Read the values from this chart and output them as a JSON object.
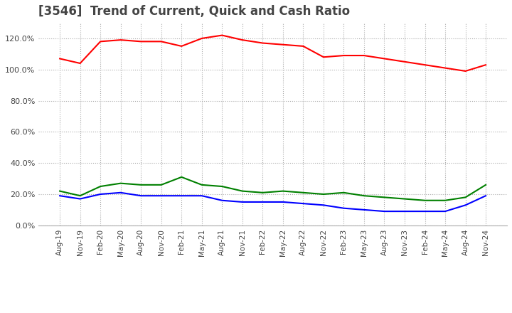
{
  "title": "[3546]  Trend of Current, Quick and Cash Ratio",
  "title_fontsize": 12,
  "background_color": "#ffffff",
  "grid_color": "#aaaaaa",
  "x_labels": [
    "Aug-19",
    "Nov-19",
    "Feb-20",
    "May-20",
    "Aug-20",
    "Nov-20",
    "Feb-21",
    "May-21",
    "Aug-21",
    "Nov-21",
    "Feb-22",
    "May-22",
    "Aug-22",
    "Nov-22",
    "Feb-23",
    "May-23",
    "Aug-23",
    "Nov-23",
    "Feb-24",
    "May-24",
    "Aug-24",
    "Nov-24"
  ],
  "current_ratio": [
    1.07,
    1.04,
    1.18,
    1.19,
    1.18,
    1.18,
    1.15,
    1.2,
    1.22,
    1.19,
    1.17,
    1.16,
    1.15,
    1.08,
    1.09,
    1.09,
    1.07,
    1.05,
    1.03,
    1.01,
    0.99,
    1.03
  ],
  "quick_ratio": [
    0.22,
    0.19,
    0.25,
    0.27,
    0.26,
    0.26,
    0.31,
    0.26,
    0.25,
    0.22,
    0.21,
    0.22,
    0.21,
    0.2,
    0.21,
    0.19,
    0.18,
    0.17,
    0.16,
    0.16,
    0.18,
    0.26
  ],
  "cash_ratio": [
    0.19,
    0.17,
    0.2,
    0.21,
    0.19,
    0.19,
    0.19,
    0.19,
    0.16,
    0.15,
    0.15,
    0.15,
    0.14,
    0.13,
    0.11,
    0.1,
    0.09,
    0.09,
    0.09,
    0.09,
    0.13,
    0.19
  ],
  "yticks": [
    0.0,
    0.2,
    0.4,
    0.6,
    0.8,
    1.0,
    1.2
  ],
  "ylim": [
    0.0,
    1.3
  ],
  "current_color": "#ff0000",
  "quick_color": "#008000",
  "cash_color": "#0000ff",
  "line_width": 1.5
}
